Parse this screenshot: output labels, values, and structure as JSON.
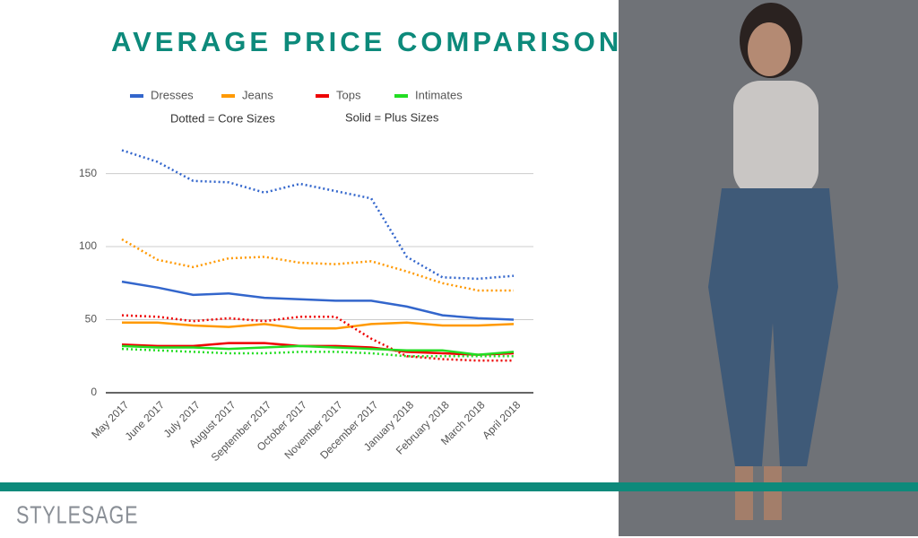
{
  "chart_data": {
    "type": "line",
    "title": "AVERAGE PRICE COMPARISON",
    "annotations": [
      "Dotted = Core Sizes",
      "Solid = Plus Sizes"
    ],
    "categories": [
      "May 2017",
      "June 2017",
      "July 2017",
      "August 2017",
      "September 2017",
      "October 2017",
      "November 2017",
      "December 2017",
      "January 2018",
      "February 2018",
      "March 2018",
      "April 2018"
    ],
    "series": [
      {
        "name": "Dresses",
        "color": "#3366cc",
        "plus_values": [
          76,
          72,
          67,
          68,
          65,
          64,
          63,
          63,
          59,
          53,
          51,
          50
        ],
        "core_values": [
          166,
          158,
          145,
          144,
          137,
          143,
          138,
          133,
          93,
          79,
          78,
          80
        ]
      },
      {
        "name": "Jeans",
        "color": "#ff9900",
        "plus_values": [
          48,
          48,
          46,
          45,
          47,
          44,
          44,
          47,
          48,
          46,
          46,
          47
        ],
        "core_values": [
          105,
          91,
          86,
          92,
          93,
          89,
          88,
          90,
          83,
          75,
          70,
          70
        ]
      },
      {
        "name": "Tops",
        "color": "#ee0000",
        "plus_values": [
          33,
          32,
          32,
          34,
          34,
          32,
          32,
          31,
          28,
          27,
          26,
          27
        ],
        "core_values": [
          53,
          52,
          49,
          51,
          49,
          52,
          52,
          37,
          25,
          23,
          22,
          22
        ]
      },
      {
        "name": "Intimates",
        "color": "#22dd22",
        "plus_values": [
          32,
          31,
          31,
          30,
          31,
          32,
          31,
          30,
          29,
          29,
          26,
          28
        ],
        "core_values": [
          30,
          29,
          28,
          27,
          27,
          28,
          28,
          27,
          25,
          25,
          25,
          25
        ]
      }
    ],
    "ylim": [
      0,
      170
    ],
    "yticks": [
      0,
      50,
      100,
      150
    ],
    "grid": true,
    "logo": "STYLESAGE"
  }
}
